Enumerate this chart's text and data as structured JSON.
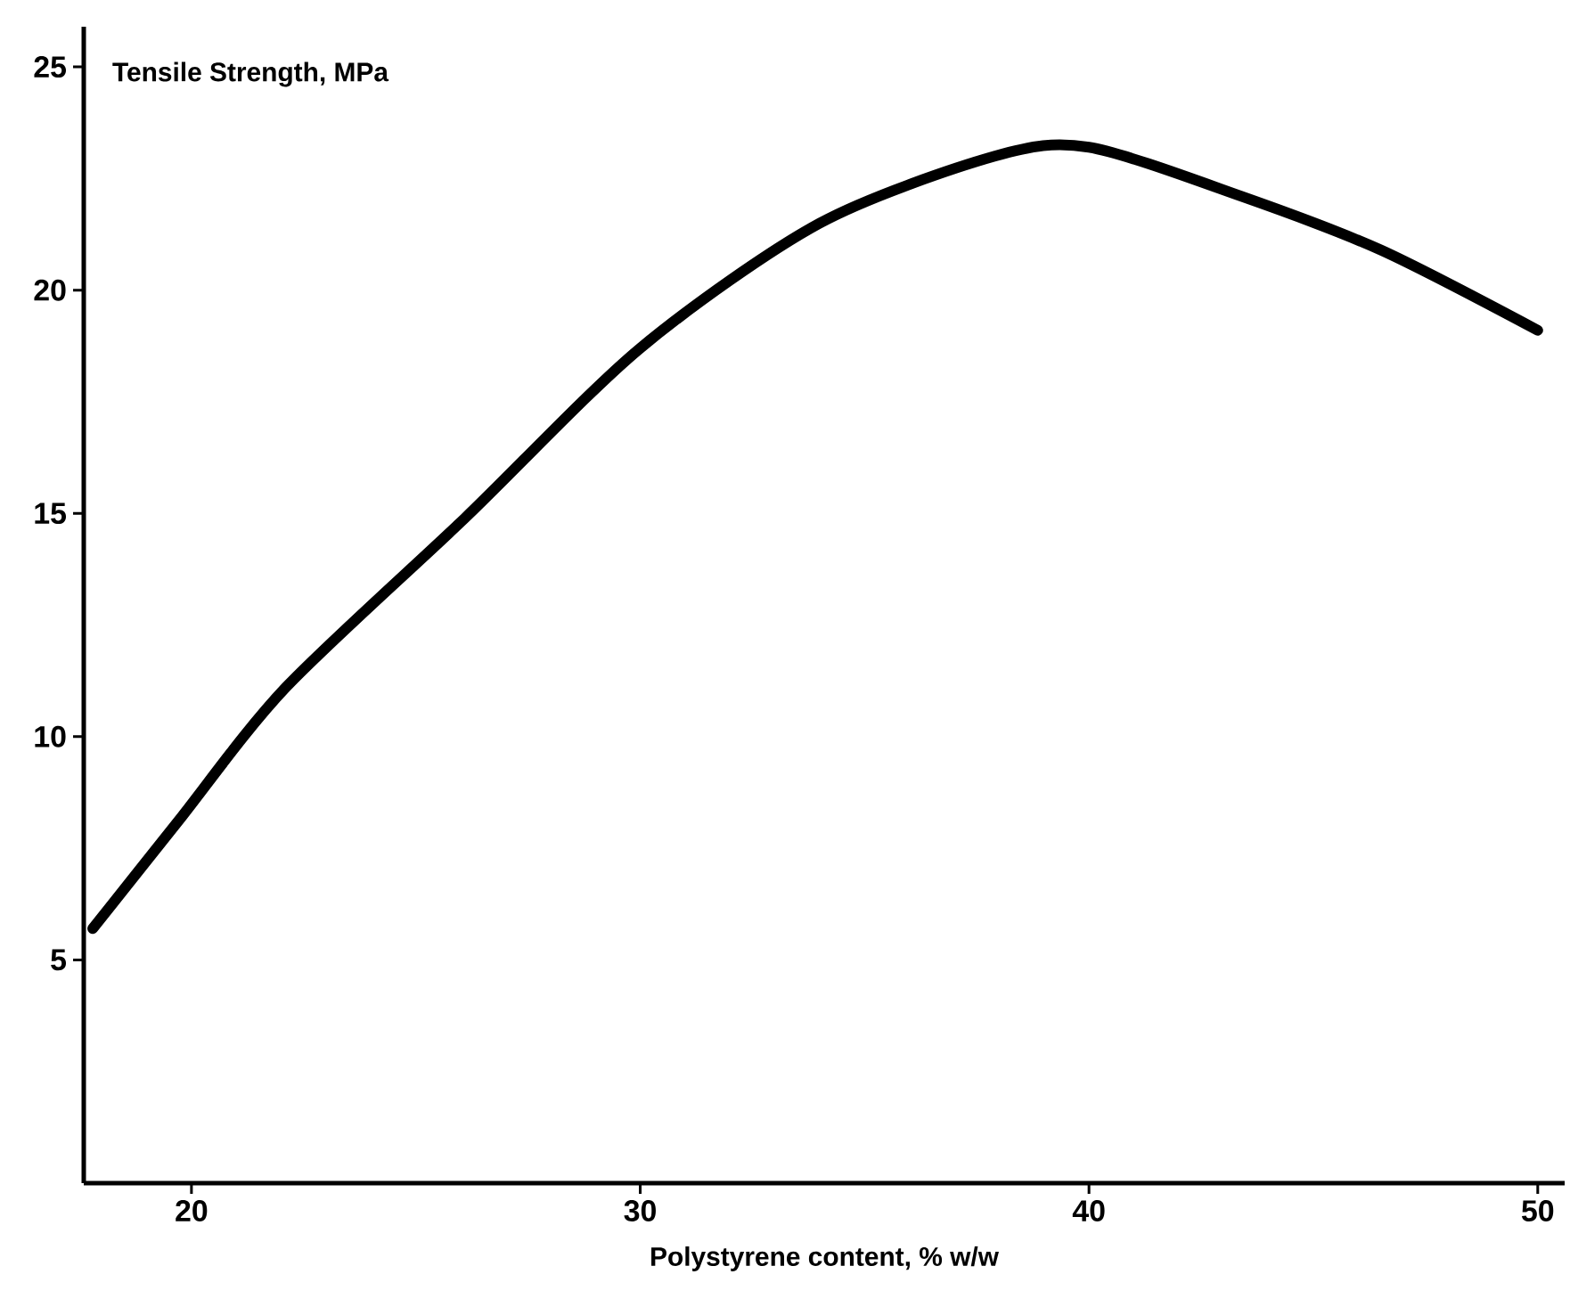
{
  "chart_data": {
    "type": "line",
    "ylabel": "Tensile Strength, MPa",
    "xlabel": "Polystyrene content, % w/w",
    "x": [
      17.8,
      19.7,
      22.1,
      26.1,
      30,
      34,
      37.9,
      40,
      43.4,
      46.5,
      50
    ],
    "series": [
      {
        "color": "#000000",
        "values": [
          5.7,
          8.1,
          11.1,
          14.9,
          18.7,
          21.5,
          23.0,
          23.2,
          22.1,
          20.9,
          19.1
        ]
      }
    ],
    "xlim": [
      17.6,
      50.6
    ],
    "ylim": [
      0,
      25.9
    ],
    "xticks": [
      20,
      30,
      40,
      50
    ],
    "yticks": [
      5,
      10,
      15,
      20,
      25
    ],
    "grid": false,
    "marker": "none",
    "line_style": "solid"
  }
}
